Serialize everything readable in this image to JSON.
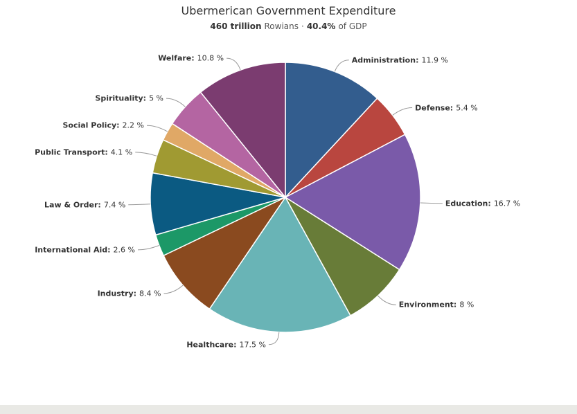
{
  "chart_data": {
    "type": "pie",
    "title": "Ubermerican Government Expenditure",
    "subtitle": [
      "460 trillion",
      "Rowians",
      "·",
      "40.4%",
      "of GDP"
    ],
    "categories": [
      "Administration",
      "Defense",
      "Education",
      "Environment",
      "Healthcare",
      "Industry",
      "International Aid",
      "Law & Order",
      "Public Transport",
      "Social Policy",
      "Spirituality",
      "Welfare"
    ],
    "values": [
      11.9,
      5.4,
      16.7,
      8,
      17.5,
      8.4,
      2.6,
      7.4,
      4.1,
      2.2,
      5,
      10.8
    ],
    "value_labels": [
      "11.9 %",
      "5.4 %",
      "16.7 %",
      "8 %",
      "17.5 %",
      "8.4 %",
      "2.6 %",
      "7.4 %",
      "4.1 %",
      "2.2 %",
      "5 %",
      "10.8 %"
    ],
    "colors": [
      "#335d8e",
      "#b9463f",
      "#7a5aa9",
      "#687c38",
      "#69b4b6",
      "#8a4a1f",
      "#1c9867",
      "#0b5a82",
      "#a09a32",
      "#e0a866",
      "#b465a2",
      "#7b3c70",
      "#88985e"
    ]
  }
}
